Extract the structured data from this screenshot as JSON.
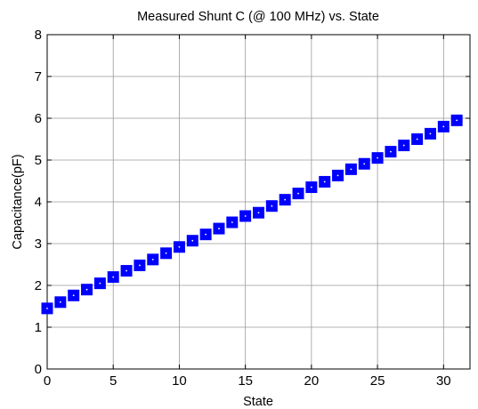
{
  "chart_data": {
    "type": "scatter",
    "title": "Measured Shunt C (@ 100 MHz) vs. State",
    "xlabel": "State",
    "ylabel": "Capacitance(pF)",
    "xlim": [
      0,
      32
    ],
    "ylim": [
      0,
      8
    ],
    "xticks": [
      "0",
      "5",
      "10",
      "15",
      "20",
      "25",
      "30"
    ],
    "yticks": [
      "0",
      "1",
      "2",
      "3",
      "4",
      "5",
      "6",
      "7",
      "8"
    ],
    "grid": true,
    "marker": "square",
    "series": [
      {
        "color": "#0000ff",
        "x": [
          0,
          1,
          2,
          3,
          4,
          5,
          6,
          7,
          8,
          9,
          10,
          11,
          12,
          13,
          14,
          15,
          16,
          17,
          18,
          19,
          20,
          21,
          22,
          23,
          24,
          25,
          26,
          27,
          28,
          29,
          30,
          31
        ],
        "y": [
          1.45,
          1.6,
          1.76,
          1.9,
          2.05,
          2.2,
          2.35,
          2.48,
          2.62,
          2.77,
          2.92,
          3.07,
          3.22,
          3.36,
          3.51,
          3.66,
          3.74,
          3.9,
          4.05,
          4.2,
          4.35,
          4.48,
          4.63,
          4.78,
          4.91,
          5.05,
          5.2,
          5.35,
          5.5,
          5.63,
          5.8,
          5.95
        ]
      }
    ]
  }
}
